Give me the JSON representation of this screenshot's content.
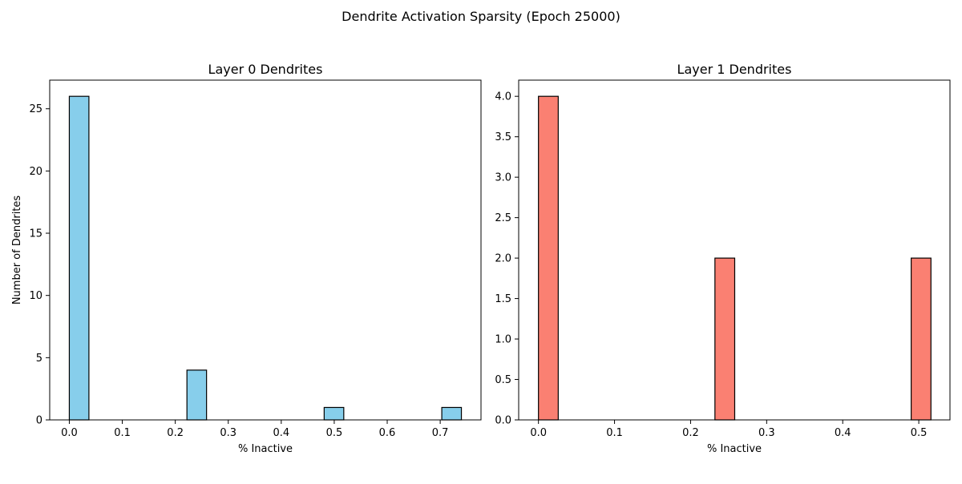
{
  "figure": {
    "suptitle": "Dendrite Activation Sparsity (Epoch 25000)"
  },
  "chart_data": [
    {
      "type": "bar",
      "title": "Layer 0 Dendrites",
      "xlabel": "% Inactive",
      "ylabel": "Number of Dendrites",
      "bar_color": "#87ceeb",
      "edge_color": "#000000",
      "xlim": [
        -0.037,
        0.777
      ],
      "ylim": [
        0,
        27.3
      ],
      "xticks": [
        0.0,
        0.1,
        0.2,
        0.3,
        0.4,
        0.5,
        0.6,
        0.7
      ],
      "xtick_labels": [
        "0.0",
        "0.1",
        "0.2",
        "0.3",
        "0.4",
        "0.5",
        "0.6",
        "0.7"
      ],
      "yticks": [
        0,
        5,
        10,
        15,
        20,
        25
      ],
      "ytick_labels": [
        "0",
        "5",
        "10",
        "15",
        "20",
        "25"
      ],
      "bins": [
        {
          "x0": 0.0,
          "x1": 0.037,
          "value": 26
        },
        {
          "x0": 0.222,
          "x1": 0.259,
          "value": 4
        },
        {
          "x0": 0.481,
          "x1": 0.518,
          "value": 1
        },
        {
          "x0": 0.703,
          "x1": 0.74,
          "value": 1
        }
      ]
    },
    {
      "type": "bar",
      "title": "Layer 1 Dendrites",
      "xlabel": "% Inactive",
      "ylabel": "",
      "bar_color": "#fa8072",
      "edge_color": "#000000",
      "xlim": [
        -0.026,
        0.541
      ],
      "ylim": [
        0,
        4.2
      ],
      "xticks": [
        0.0,
        0.1,
        0.2,
        0.3,
        0.4,
        0.5
      ],
      "xtick_labels": [
        "0.0",
        "0.1",
        "0.2",
        "0.3",
        "0.4",
        "0.5"
      ],
      "yticks": [
        0.0,
        0.5,
        1.0,
        1.5,
        2.0,
        2.5,
        3.0,
        3.5,
        4.0
      ],
      "ytick_labels": [
        "0.0",
        "0.5",
        "1.0",
        "1.5",
        "2.0",
        "2.5",
        "3.0",
        "3.5",
        "4.0"
      ],
      "bins": [
        {
          "x0": 0.0,
          "x1": 0.026,
          "value": 4
        },
        {
          "x0": 0.232,
          "x1": 0.258,
          "value": 2
        },
        {
          "x0": 0.49,
          "x1": 0.516,
          "value": 2
        }
      ]
    }
  ]
}
